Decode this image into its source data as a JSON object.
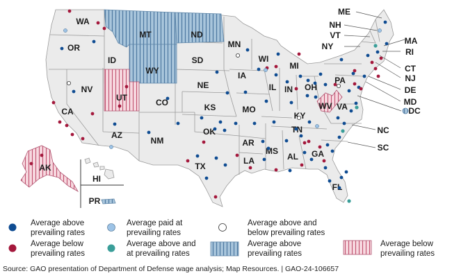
{
  "colors": {
    "above": "#0f4c92",
    "below": "#a4183c",
    "paid_at": "#9dc3e6",
    "above_and_at": "#3a9e99",
    "mixed_fill": "#ffffff",
    "state_above_fill": "#a9c6dc",
    "state_above_stripe": "#4f7aa2",
    "state_below_fill": "#f7d9e0",
    "state_below_stripe": "#c0506f",
    "base_state": "#ebebeb"
  },
  "states": [
    "WA",
    "OR",
    "CA",
    "NV",
    "ID",
    "MT",
    "WY",
    "UT",
    "AZ",
    "CO",
    "NM",
    "ND",
    "SD",
    "NE",
    "KS",
    "OK",
    "TX",
    "MN",
    "IA",
    "MO",
    "AR",
    "LA",
    "WI",
    "IL",
    "MS",
    "MI",
    "IN",
    "KY",
    "TN",
    "AL",
    "OH",
    "GA",
    "FL",
    "WV",
    "PA",
    "VA",
    "NC",
    "SC",
    "NY",
    "ME",
    "NH",
    "VT",
    "MA",
    "RI",
    "CT",
    "NJ",
    "DE",
    "MD",
    "DC",
    "AK",
    "HI",
    "PR"
  ],
  "legend": {
    "above": "Average above prevailing rates",
    "below": "Average below prevailing rates",
    "paid_at": "Average paid at prevailing rates",
    "above_and_at": "Average above and at prevailing rates",
    "mixed": "Average above and below prevailing rates",
    "state_above": "Average above prevailing rates",
    "state_below": "Average below prevailing rates"
  },
  "source": "Source: GAO presentation of Department of Defense wage analysis; Map Resources.  |  GAO-24-106657"
}
